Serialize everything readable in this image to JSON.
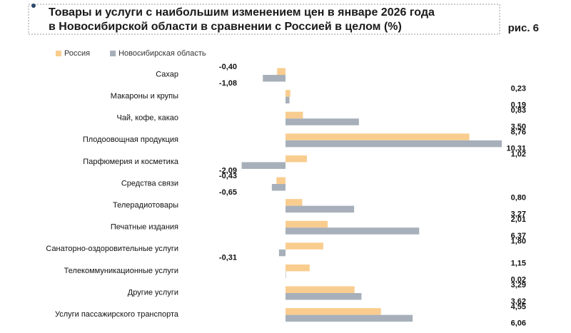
{
  "chart_data": {
    "type": "hbar",
    "title": [
      "Товары и услуги с наибольшим изменением цен в январе 2026 года",
      "в Новосибирской области в сравнении с Россией в целом (%)"
    ],
    "figure_label": "рис. 6",
    "categories": [
      "Сахар",
      "Макароны и крупы",
      "Чай, кофе, какао",
      "Плодоовощная продукция",
      "Парфюмерия и косметика",
      "Средства связи",
      "Телерадиотовары",
      "Печатные издания",
      "Санаторно-оздоровительные услуги",
      "Телекоммуникационные услуги",
      "Другие услуги",
      "Услуги пассажирского транспорта"
    ],
    "series": [
      {
        "name": "Россия",
        "color": "#f9cd8f",
        "values": [
          -0.4,
          0.23,
          0.83,
          8.76,
          1.02,
          -0.43,
          0.8,
          2.01,
          1.8,
          1.15,
          3.29,
          4.55
        ],
        "value_labels": [
          "-0,40",
          "0,23",
          "0,83",
          "8,76",
          "1,02",
          "-0,43",
          "0,80",
          "2,01",
          "1,80",
          "1,15",
          "3,29",
          "4,55"
        ]
      },
      {
        "name": "Новосибирская область",
        "color": "#a7b0ba",
        "values": [
          -1.08,
          0.19,
          3.5,
          10.31,
          -2.09,
          -0.65,
          3.27,
          6.37,
          -0.31,
          0.02,
          3.62,
          6.06
        ],
        "value_labels": [
          "-1,08",
          "0,19",
          "3,50",
          "10,31",
          "-2,09",
          "-0,65",
          "3,27",
          "6,37",
          "-0,31",
          "0,02",
          "3,62",
          "6,06"
        ]
      }
    ]
  }
}
